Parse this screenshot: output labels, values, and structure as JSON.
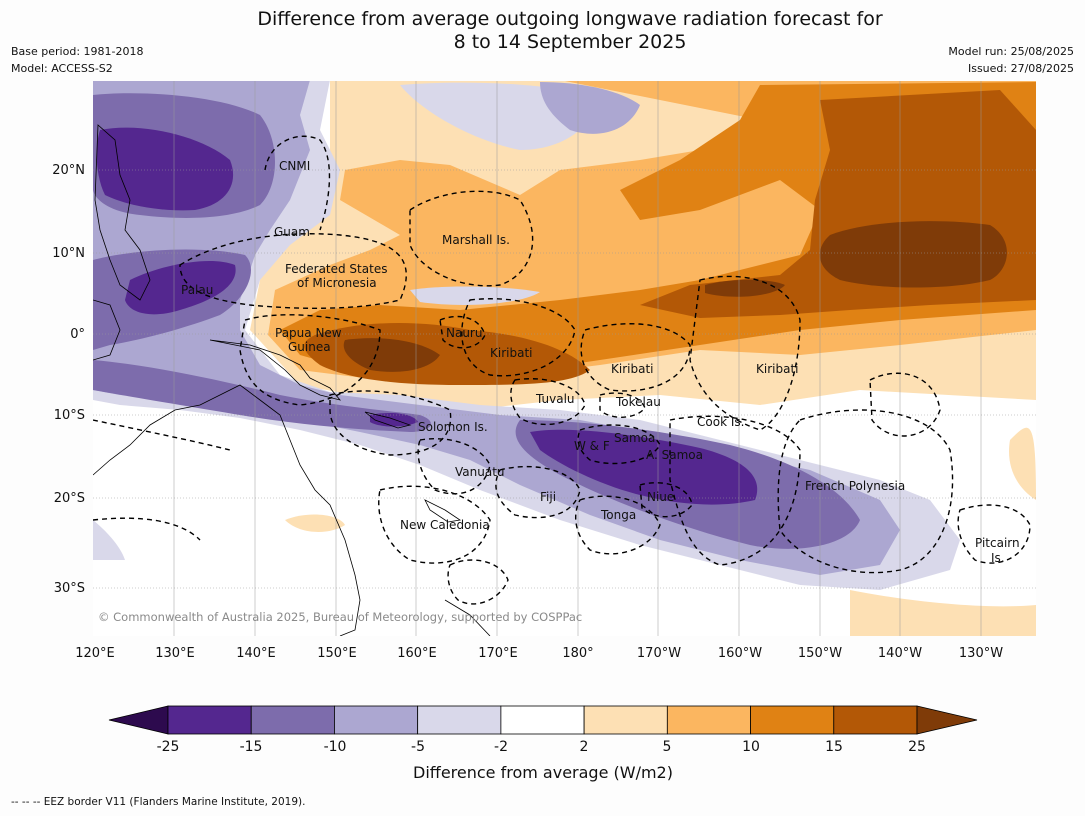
{
  "header": {
    "title_line1": "Difference from average outgoing longwave radiation forecast for",
    "title_line2": "8 to 14 September 2025",
    "base_period": "Base period: 1981-2018",
    "model": "Model: ACCESS-S2",
    "model_run": "Model run: 25/08/2025",
    "issued": "Issued: 27/08/2025"
  },
  "map": {
    "lon_ticks": [
      "120°E",
      "130°E",
      "140°E",
      "150°E",
      "160°E",
      "170°E",
      "180°",
      "170°W",
      "160°W",
      "150°W",
      "140°W",
      "130°W"
    ],
    "lat_ticks": [
      "20°N",
      "10°N",
      "0°",
      "10°S",
      "20°S",
      "30°S"
    ],
    "labels": [
      "CNMI",
      "Guam",
      "Marshall Is.",
      "Federated States",
      "of Micronesia",
      "Palau",
      "Papua New",
      "Guinea",
      "Nauru",
      "Kiribati",
      "Kiribati",
      "Kiribati",
      "Tuvalu",
      "Tokelau",
      "Solomon Is.",
      "Cook Is.",
      "W & F",
      "Samoa",
      "A. Samoa",
      "Vanuatu",
      "Fiji",
      "Niue",
      "Tonga",
      "French Polynesia",
      "New Caledonia",
      "Pitcairn",
      "Is."
    ],
    "credit": "© Commonwealth of Australia 2025, Bureau of Meteorology, supported by COSPPac"
  },
  "colorbar": {
    "ticks": [
      "-25",
      "-15",
      "-10",
      "-5",
      "-2",
      "2",
      "5",
      "10",
      "15",
      "25"
    ],
    "title": "Difference from average (W/m2)",
    "colors": {
      "below": "#2d0a4e",
      "bins": [
        "#54278f",
        "#7d6cac",
        "#aca7d1",
        "#d9d8ea",
        "#ffffff",
        "#fde0b4",
        "#fbb660",
        "#e08214",
        "#b35806"
      ],
      "above": "#7f3b08"
    }
  },
  "footnote": "--  --  -- EEZ border V11 (Flanders Marine Institute, 2019)."
}
